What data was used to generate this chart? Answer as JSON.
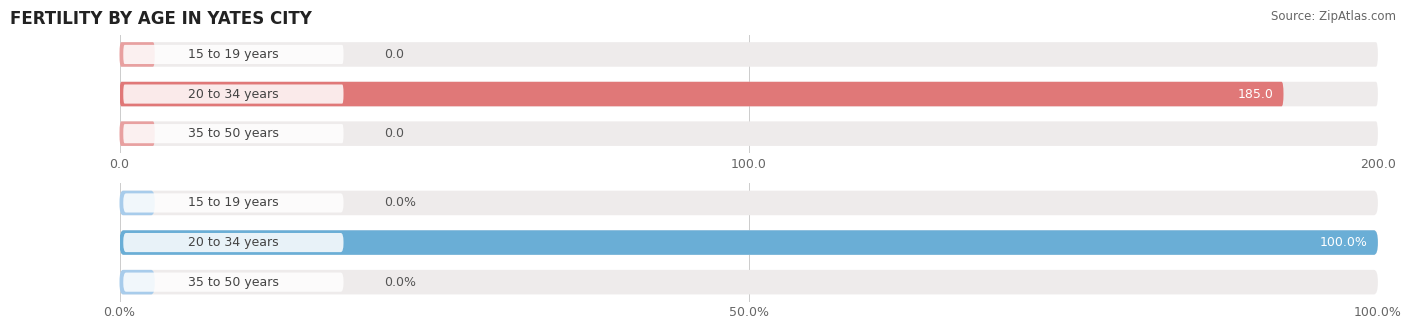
{
  "title": "FERTILITY BY AGE IN YATES CITY",
  "source": "Source: ZipAtlas.com",
  "top_chart": {
    "categories": [
      "15 to 19 years",
      "20 to 34 years",
      "35 to 50 years"
    ],
    "values": [
      0.0,
      185.0,
      0.0
    ],
    "bar_color": "#E07878",
    "bar_bg_color": "#EEEBEB",
    "nub_color": "#E8A0A0",
    "xlim": [
      0,
      200
    ],
    "xticks": [
      0.0,
      100.0,
      200.0
    ],
    "xtick_labels": [
      "0.0",
      "100.0",
      "200.0"
    ]
  },
  "bottom_chart": {
    "categories": [
      "15 to 19 years",
      "20 to 34 years",
      "35 to 50 years"
    ],
    "values": [
      0.0,
      100.0,
      0.0
    ],
    "bar_color": "#6AAED6",
    "bar_bg_color": "#EEEBEB",
    "nub_color": "#A8CCEB",
    "xlim": [
      0,
      100
    ],
    "xticks": [
      0.0,
      50.0,
      100.0
    ],
    "xtick_labels": [
      "0.0%",
      "50.0%",
      "100.0%"
    ]
  },
  "background_color": "#FFFFFF",
  "bar_height": 0.62,
  "title_fontsize": 12,
  "label_fontsize": 9,
  "tick_fontsize": 9,
  "category_fontsize": 9,
  "source_fontsize": 8.5
}
